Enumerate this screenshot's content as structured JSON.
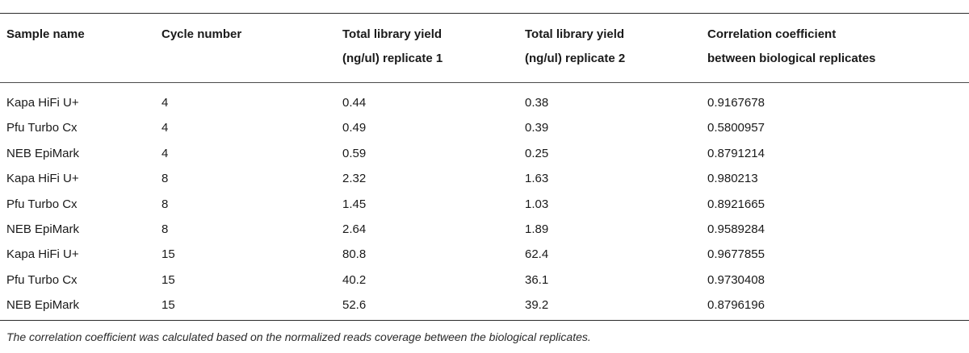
{
  "table": {
    "headers": [
      {
        "line1": "Sample name",
        "line2": ""
      },
      {
        "line1": "Cycle number",
        "line2": ""
      },
      {
        "line1": "Total library yield",
        "line2": "(ng/ul) replicate 1"
      },
      {
        "line1": "Total library yield",
        "line2": "(ng/ul) replicate 2"
      },
      {
        "line1": "Correlation coefficient",
        "line2": "between biological replicates"
      }
    ],
    "rows": [
      [
        "Kapa HiFi U+",
        "4",
        "0.44",
        "0.38",
        "0.9167678"
      ],
      [
        "Pfu Turbo Cx",
        "4",
        "0.49",
        "0.39",
        "0.5800957"
      ],
      [
        "NEB EpiMark",
        "4",
        "0.59",
        "0.25",
        "0.8791214"
      ],
      [
        "Kapa HiFi U+",
        "8",
        "2.32",
        "1.63",
        "0.980213"
      ],
      [
        "Pfu Turbo Cx",
        "8",
        "1.45",
        "1.03",
        "0.8921665"
      ],
      [
        "NEB EpiMark",
        "8",
        "2.64",
        "1.89",
        "0.9589284"
      ],
      [
        "Kapa HiFi U+",
        "15",
        "80.8",
        "62.4",
        "0.9677855"
      ],
      [
        "Pfu Turbo Cx",
        "15",
        "40.2",
        "36.1",
        "0.9730408"
      ],
      [
        "NEB EpiMark",
        "15",
        "52.6",
        "39.2",
        "0.8796196"
      ]
    ],
    "footnote": "The correlation coefficient was calculated based on the normalized reads coverage between the biological replicates."
  }
}
